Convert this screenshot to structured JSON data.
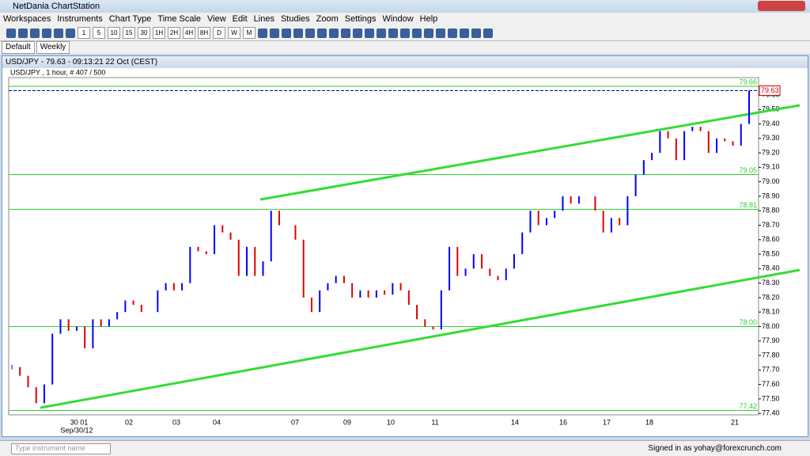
{
  "window": {
    "title": "NetDania ChartStation"
  },
  "menu": [
    "Workspaces",
    "Instruments",
    "Chart Type",
    "Time Scale",
    "View",
    "Edit",
    "Lines",
    "Studies",
    "Zoom",
    "Settings",
    "Window",
    "Help"
  ],
  "toolbar": [
    "1",
    "5",
    "10",
    "15",
    "30",
    "1H",
    "2H",
    "4H",
    "8H",
    "D",
    "W",
    "M"
  ],
  "tabs": [
    "Default",
    "Weekly"
  ],
  "chart_window": {
    "title": "USD/JPY - 79.63 - 09:13:21  22 Oct (CEST)"
  },
  "status": {
    "search_placeholder": "Type instrument name",
    "signed_in": "Signed in as yohay@forexcrunch.com"
  },
  "chart_data": {
    "type": "bars",
    "subtitle": "USD/JPY , 1 hour, # 407 / 500",
    "x_labels": [
      "30 01",
      "02",
      "03",
      "04",
      "07",
      "09",
      "10",
      "11",
      "14",
      "16",
      "17",
      "18",
      "21"
    ],
    "x_sublabel": "Sep/30/12",
    "values": [
      77.72,
      77.66,
      77.58,
      77.47,
      77.6,
      77.95,
      78.05,
      77.97,
      78.0,
      77.85,
      78.05,
      78.0,
      78.05,
      78.1,
      78.18,
      78.15,
      78.1,
      78.1,
      78.25,
      78.3,
      78.25,
      78.3,
      78.55,
      78.52,
      78.5,
      78.7,
      78.65,
      78.6,
      78.35,
      78.55,
      78.35,
      78.45,
      78.8,
      78.7,
      78.7,
      78.6,
      78.2,
      78.1,
      78.25,
      78.3,
      78.35,
      78.3,
      78.2,
      78.25,
      78.2,
      78.25,
      78.22,
      78.3,
      78.25,
      78.15,
      78.05,
      78.0,
      77.98,
      78.25,
      78.55,
      78.35,
      78.4,
      78.5,
      78.4,
      78.35,
      78.32,
      78.4,
      78.5,
      78.65,
      78.8,
      78.7,
      78.75,
      78.8,
      78.9,
      78.85,
      78.9,
      78.9,
      78.8,
      78.65,
      78.75,
      78.7,
      78.9,
      79.05,
      79.15,
      79.2,
      79.35,
      79.3,
      79.15,
      79.35,
      79.38,
      79.35,
      79.2,
      79.3,
      79.28,
      79.25,
      79.4,
      79.63
    ],
    "up_color": "#0000ff",
    "down_color": "#e00000",
    "ylim": [
      77.39,
      79.72
    ],
    "yticks": [
      {
        "value": 77.4,
        "label": "77.40"
      },
      {
        "value": 77.5,
        "label": "77.50"
      },
      {
        "value": 77.6,
        "label": "77.60"
      },
      {
        "value": 77.7,
        "label": "77.70"
      },
      {
        "value": 77.8,
        "label": "77.80"
      },
      {
        "value": 77.9,
        "label": "77.90"
      },
      {
        "value": 78,
        "label": "78.00"
      },
      {
        "value": 78.1,
        "label": "78.10"
      },
      {
        "value": 78.2,
        "label": "78.20"
      },
      {
        "value": 78.3,
        "label": "78.30"
      },
      {
        "value": 78.4,
        "label": "78.40"
      },
      {
        "value": 78.5,
        "label": "78.50"
      },
      {
        "value": 78.6,
        "label": "78.60"
      },
      {
        "value": 78.7,
        "label": "78.70"
      },
      {
        "value": 78.8,
        "label": "78.80"
      },
      {
        "value": 78.9,
        "label": "78.90"
      },
      {
        "value": 79,
        "label": "79.00"
      },
      {
        "value": 79.1,
        "label": "79.10"
      },
      {
        "value": 79.2,
        "label": "79.20"
      },
      {
        "value": 79.3,
        "label": "79.30"
      },
      {
        "value": 79.4,
        "label": "79.40"
      },
      {
        "value": 79.5,
        "label": "79.50"
      },
      {
        "value": 79.6,
        "label": "79.60"
      }
    ],
    "levels": [
      79.66,
      79.05,
      78.81,
      {
        "value": 78,
        "label": "78.00"
      },
      77.42
    ],
    "level_color": "#33cc33",
    "current": 79.63,
    "current_color": "#0000aa"
  }
}
